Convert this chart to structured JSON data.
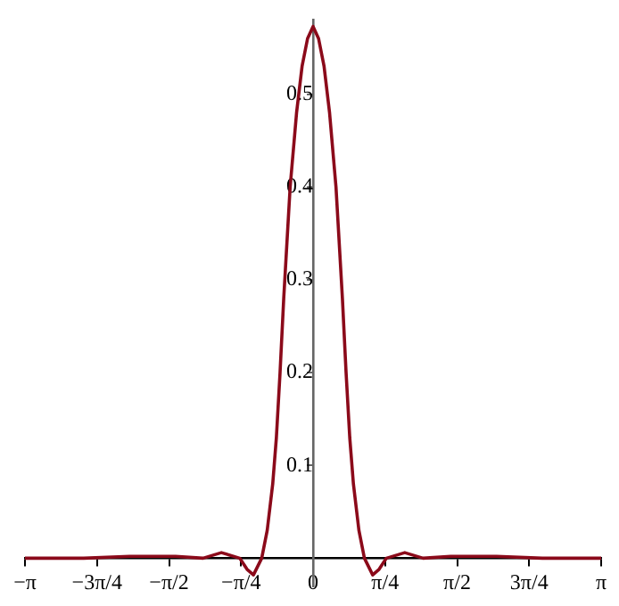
{
  "chart_data": {
    "type": "line",
    "x": [
      -3.1416,
      -2.5,
      -2.0,
      -1.5,
      -1.2,
      -1.0,
      -0.8,
      -0.72,
      -0.65,
      -0.56,
      -0.5,
      -0.44,
      -0.4,
      -0.36,
      -0.32,
      -0.25,
      -0.18,
      -0.12,
      -0.06,
      0,
      0.06,
      0.12,
      0.18,
      0.25,
      0.32,
      0.36,
      0.4,
      0.44,
      0.5,
      0.56,
      0.65,
      0.72,
      0.8,
      1.0,
      1.2,
      1.5,
      2.0,
      2.5,
      3.1416
    ],
    "series": [
      {
        "color": "#8b0a1a",
        "values": [
          0,
          0,
          0.002,
          0.002,
          0,
          0.006,
          0,
          -0.012,
          -0.018,
          0,
          0.03,
          0.08,
          0.13,
          0.2,
          0.28,
          0.4,
          0.48,
          0.53,
          0.56,
          0.573,
          0.56,
          0.53,
          0.48,
          0.4,
          0.28,
          0.2,
          0.13,
          0.08,
          0.03,
          0,
          -0.018,
          -0.012,
          0,
          0.006,
          0,
          0.002,
          0.002,
          0,
          0
        ]
      }
    ],
    "xlim": [
      -3.1416,
      3.1416
    ],
    "xticks": [
      {
        "value": -3.1416,
        "label": "−π"
      },
      {
        "value": -2.3562,
        "label": "−3π/4"
      },
      {
        "value": -1.5708,
        "label": "−π/2"
      },
      {
        "value": -0.7854,
        "label": "−π/4"
      },
      {
        "value": 0,
        "label": "0"
      },
      {
        "value": 0.7854,
        "label": "π/4"
      },
      {
        "value": 1.5708,
        "label": "π/2"
      },
      {
        "value": 2.3562,
        "label": "3π/4"
      },
      {
        "value": 3.1416,
        "label": "π"
      }
    ],
    "ylim": [
      -0.03,
      0.58
    ],
    "yticks": [
      0.1,
      0.2,
      0.3,
      0.4,
      0.5
    ],
    "grid": false,
    "legend": false,
    "marker": "none",
    "line_style": "solid"
  }
}
